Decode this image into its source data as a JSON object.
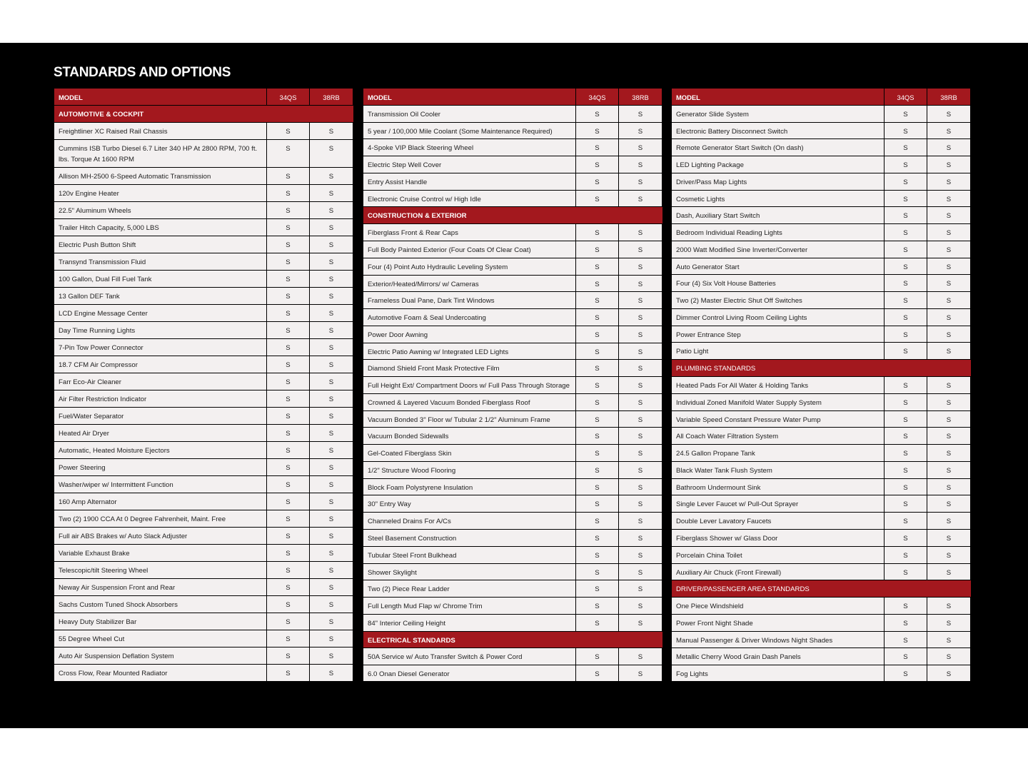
{
  "page_title": "STANDARDS AND OPTIONS",
  "colors": {
    "header_red": "#a3181e",
    "cell_bg": "#f3f0f0",
    "background": "#000000"
  },
  "tables": [
    {
      "header": {
        "label": "MODEL",
        "models": [
          "34QS",
          "38RB"
        ]
      },
      "rows": [
        {
          "section": "AUTOMOTIVE & COCKPIT"
        },
        {
          "label": "Freightliner XC Raised Rail Chassis",
          "values": [
            "S",
            "S"
          ]
        },
        {
          "label": "Cummins ISB Turbo Diesel 6.7 Liter 340 HP At 2800 RPM, 700 ft. lbs. Torque At 1600 RPM",
          "values": [
            "S",
            "S"
          ]
        },
        {
          "label": "Allison MH-2500 6-Speed Automatic Transmission",
          "values": [
            "S",
            "S"
          ]
        },
        {
          "label": "120v Engine Heater",
          "values": [
            "S",
            "S"
          ]
        },
        {
          "label": "22.5\" Aluminum Wheels",
          "values": [
            "S",
            "S"
          ]
        },
        {
          "label": "Trailer Hitch Capacity, 5,000 LBS",
          "values": [
            "S",
            "S"
          ]
        },
        {
          "label": "Electric Push Button Shift",
          "values": [
            "S",
            "S"
          ]
        },
        {
          "label": "Transynd Transmission Fluid",
          "values": [
            "S",
            "S"
          ]
        },
        {
          "label": "100 Gallon, Dual Fill Fuel Tank",
          "values": [
            "S",
            "S"
          ]
        },
        {
          "label": "13 Gallon DEF Tank",
          "values": [
            "S",
            "S"
          ]
        },
        {
          "label": "LCD Engine Message Center",
          "values": [
            "S",
            "S"
          ]
        },
        {
          "label": "Day Time Running Lights",
          "values": [
            "S",
            "S"
          ]
        },
        {
          "label": "7-Pin Tow Power Connector",
          "values": [
            "S",
            "S"
          ]
        },
        {
          "label": "18.7 CFM Air Compressor",
          "values": [
            "S",
            "S"
          ]
        },
        {
          "label": "Farr Eco-Air Cleaner",
          "values": [
            "S",
            "S"
          ]
        },
        {
          "label": "Air Filter Restriction Indicator",
          "values": [
            "S",
            "S"
          ]
        },
        {
          "label": "Fuel/Water Separator",
          "values": [
            "S",
            "S"
          ]
        },
        {
          "label": "Heated Air Dryer",
          "values": [
            "S",
            "S"
          ]
        },
        {
          "label": "Automatic, Heated Moisture Ejectors",
          "values": [
            "S",
            "S"
          ]
        },
        {
          "label": "Power Steering",
          "values": [
            "S",
            "S"
          ]
        },
        {
          "label": "Washer/wiper w/ Intermittent Function",
          "values": [
            "S",
            "S"
          ]
        },
        {
          "label": "160 Amp Alternator",
          "values": [
            "S",
            "S"
          ]
        },
        {
          "label": "Two (2) 1900 CCA At 0 Degree Fahrenheit, Maint. Free",
          "values": [
            "S",
            "S"
          ]
        },
        {
          "label": "Full air ABS Brakes w/ Auto Slack Adjuster",
          "values": [
            "S",
            "S"
          ]
        },
        {
          "label": "Variable Exhaust Brake",
          "values": [
            "S",
            "S"
          ]
        },
        {
          "label": "Telescopic/tilt Steering Wheel",
          "values": [
            "S",
            "S"
          ]
        },
        {
          "label": "Neway Air Suspension Front and Rear",
          "values": [
            "S",
            "S"
          ]
        },
        {
          "label": "Sachs Custom Tuned Shock Absorbers",
          "values": [
            "S",
            "S"
          ]
        },
        {
          "label": "Heavy Duty Stabilizer Bar",
          "values": [
            "S",
            "S"
          ]
        },
        {
          "label": "55 Degree Wheel Cut",
          "values": [
            "S",
            "S"
          ]
        },
        {
          "label": "Auto Air Suspension Deflation System",
          "values": [
            "S",
            "S"
          ]
        },
        {
          "label": "Cross Flow, Rear Mounted Radiator",
          "values": [
            "S",
            "S"
          ]
        }
      ]
    },
    {
      "header": {
        "label": "MODEL",
        "models": [
          "34QS",
          "38RB"
        ]
      },
      "rows": [
        {
          "label": "Transmission Oil Cooler",
          "values": [
            "S",
            "S"
          ]
        },
        {
          "label": "5 year / 100,000 Mile Coolant (Some Maintenance Required)",
          "values": [
            "S",
            "S"
          ]
        },
        {
          "label": "4-Spoke VIP Black Steering Wheel",
          "values": [
            "S",
            "S"
          ]
        },
        {
          "label": "Electric Step Well Cover",
          "values": [
            "S",
            "S"
          ]
        },
        {
          "label": "Entry Assist Handle",
          "values": [
            "S",
            "S"
          ]
        },
        {
          "label": "Electronic Cruise Control w/ High Idle",
          "values": [
            "S",
            "S"
          ]
        },
        {
          "section": "CONSTRUCTION & EXTERIOR"
        },
        {
          "label": "Fiberglass Front & Rear Caps",
          "values": [
            "S",
            "S"
          ]
        },
        {
          "label": "Full Body Painted Exterior (Four Coats Of Clear Coat)",
          "values": [
            "S",
            "S"
          ]
        },
        {
          "label": "Four (4) Point Auto Hydraulic Leveling System",
          "values": [
            "S",
            "S"
          ]
        },
        {
          "label": "Exterior/Heated/Mirrors/ w/ Cameras",
          "values": [
            "S",
            "S"
          ]
        },
        {
          "label": "Frameless Dual Pane, Dark Tint Windows",
          "values": [
            "S",
            "S"
          ]
        },
        {
          "label": "Automotive Foam & Seal Undercoating",
          "values": [
            "S",
            "S"
          ]
        },
        {
          "label": "Power Door Awning",
          "values": [
            "S",
            "S"
          ]
        },
        {
          "label": "Electric Patio Awning w/ Integrated LED Lights",
          "values": [
            "S",
            "S"
          ]
        },
        {
          "label": "Diamond Shield Front Mask Protective Film",
          "values": [
            "S",
            "S"
          ]
        },
        {
          "label": "Full Height Ext/ Compartment Doors w/ Full Pass Through Storage",
          "values": [
            "S",
            "S"
          ]
        },
        {
          "label": "Crowned & Layered Vacuum Bonded Fiberglass Roof",
          "values": [
            "S",
            "S"
          ]
        },
        {
          "label": "Vacuum Bonded 3\" Floor w/ Tubular 2 1/2\" Aluminum Frame",
          "values": [
            "S",
            "S"
          ]
        },
        {
          "label": "Vacuum Bonded Sidewalls",
          "values": [
            "S",
            "S"
          ]
        },
        {
          "label": "Gel-Coated Fiberglass Skin",
          "values": [
            "S",
            "S"
          ]
        },
        {
          "label": "1/2\" Structure Wood Flooring",
          "values": [
            "S",
            "S"
          ]
        },
        {
          "label": "Block Foam Polystyrene Insulation",
          "values": [
            "S",
            "S"
          ]
        },
        {
          "label": "30\" Entry Way",
          "values": [
            "S",
            "S"
          ]
        },
        {
          "label": "Channeled Drains For A/Cs",
          "values": [
            "S",
            "S"
          ]
        },
        {
          "label": "Steel Basement Construction",
          "values": [
            "S",
            "S"
          ]
        },
        {
          "label": "Tubular Steel Front Bulkhead",
          "values": [
            "S",
            "S"
          ]
        },
        {
          "label": "Shower Skylight",
          "values": [
            "S",
            "S"
          ]
        },
        {
          "label": "Two (2) Piece Rear Ladder",
          "values": [
            "S",
            "S"
          ]
        },
        {
          "label": "Full Length Mud Flap w/ Chrome Trim",
          "values": [
            "S",
            "S"
          ]
        },
        {
          "label": "84\" Interior Ceiling Height",
          "values": [
            "S",
            "S"
          ]
        },
        {
          "section": "ELECTRICAL STANDARDS"
        },
        {
          "label": "50A Service w/ Auto Transfer Switch & Power Cord",
          "values": [
            "S",
            "S"
          ]
        },
        {
          "label": "6.0 Onan Diesel Generator",
          "values": [
            "S",
            "S"
          ]
        }
      ]
    },
    {
      "header": {
        "label": "MODEL",
        "models": [
          "34QS",
          "38RB"
        ]
      },
      "rows": [
        {
          "label": "Generator Slide System",
          "values": [
            "S",
            "S"
          ]
        },
        {
          "label": "Electronic Battery Disconnect Switch",
          "values": [
            "S",
            "S"
          ]
        },
        {
          "label": "Remote Generator Start Switch (On dash)",
          "values": [
            "S",
            "S"
          ]
        },
        {
          "label": "LED Lighting Package",
          "values": [
            "S",
            "S"
          ]
        },
        {
          "label": "Driver/Pass Map Lights",
          "values": [
            "S",
            "S"
          ]
        },
        {
          "label": "Cosmetic Lights",
          "values": [
            "S",
            "S"
          ]
        },
        {
          "label": "Dash, Auxiliary Start Switch",
          "values": [
            "S",
            "S"
          ]
        },
        {
          "label": "Bedroom Individual Reading Lights",
          "values": [
            "S",
            "S"
          ]
        },
        {
          "label": "2000 Watt Modified Sine Inverter/Converter",
          "values": [
            "S",
            "S"
          ]
        },
        {
          "label": "Auto Generator Start",
          "values": [
            "S",
            "S"
          ]
        },
        {
          "label": "Four (4) Six Volt House Batteries",
          "values": [
            "S",
            "S"
          ]
        },
        {
          "label": "Two (2) Master Electric Shut Off Switches",
          "values": [
            "S",
            "S"
          ]
        },
        {
          "label": "Dimmer Control Living Room Ceiling Lights",
          "values": [
            "S",
            "S"
          ]
        },
        {
          "label": "Power Entrance Step",
          "values": [
            "S",
            "S"
          ]
        },
        {
          "label": "Patio Light",
          "values": [
            "S",
            "S"
          ]
        },
        {
          "section": "PLUMBING STANDARDS"
        },
        {
          "label": "Heated Pads For All Water & Holding Tanks",
          "values": [
            "S",
            "S"
          ]
        },
        {
          "label": "Individual Zoned Manifold Water Supply System",
          "values": [
            "S",
            "S"
          ]
        },
        {
          "label": "Variable Speed Constant Pressure Water Pump",
          "values": [
            "S",
            "S"
          ]
        },
        {
          "label": "All Coach Water Filtration System",
          "values": [
            "S",
            "S"
          ]
        },
        {
          "label": "24.5 Gallon Propane Tank",
          "values": [
            "S",
            "S"
          ]
        },
        {
          "label": "Black Water Tank Flush System",
          "values": [
            "S",
            "S"
          ]
        },
        {
          "label": "Bathroom Undermount Sink",
          "values": [
            "S",
            "S"
          ]
        },
        {
          "label": "Single Lever Faucet w/ Pull-Out Sprayer",
          "values": [
            "S",
            "S"
          ]
        },
        {
          "label": "Double Lever Lavatory Faucets",
          "values": [
            "S",
            "S"
          ]
        },
        {
          "label": "Fiberglass Shower w/ Glass Door",
          "values": [
            "S",
            "S"
          ]
        },
        {
          "label": "Porcelain China Toilet",
          "values": [
            "S",
            "S"
          ]
        },
        {
          "label": "Auxiliary Air Chuck (Front Firewall)",
          "values": [
            "S",
            "S"
          ]
        },
        {
          "section": "DRIVER/PASSENGER AREA STANDARDS"
        },
        {
          "label": "One Piece Windshield",
          "values": [
            "S",
            "S"
          ]
        },
        {
          "label": "Power Front Night Shade",
          "values": [
            "S",
            "S"
          ]
        },
        {
          "label": "Manual Passenger & Driver Windows Night Shades",
          "values": [
            "S",
            "S"
          ]
        },
        {
          "label": "Metallic Cherry Wood Grain Dash Panels",
          "values": [
            "S",
            "S"
          ]
        },
        {
          "label": "Fog Lights",
          "values": [
            "S",
            "S"
          ]
        }
      ]
    }
  ]
}
